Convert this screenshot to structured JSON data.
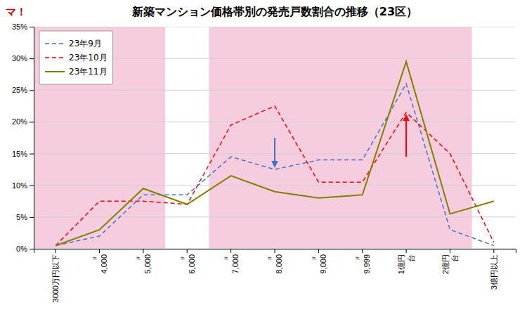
{
  "chart_data": {
    "type": "line",
    "title": "新築マンション価格帯別の発売戸数割合の推移（23区）",
    "categories": [
      "3000万円以下",
      "〃\n4,000",
      "〃\n5,000",
      "〃\n6,000",
      "〃\n7,000",
      "〃\n8,000",
      "〃\n9,000",
      "〃\n9,999",
      "1億円\n台",
      "2億円\n台",
      "3億円以上"
    ],
    "series": [
      {
        "name": "23年9月",
        "color": "#4472C4",
        "line_style": "dashed",
        "values": [
          0.5,
          2.0,
          8.5,
          8.5,
          14.5,
          12.5,
          14.0,
          14.0,
          26.0,
          3.0,
          0.5
        ]
      },
      {
        "name": "23年10月",
        "color": "#FF0000",
        "line_style": "dashed",
        "values": [
          0.5,
          7.5,
          7.5,
          7.0,
          19.5,
          22.5,
          10.5,
          10.5,
          21.5,
          15.0,
          1.0
        ]
      },
      {
        "name": "23年11月",
        "color": "#808000",
        "line_style": "solid",
        "values": [
          0.5,
          3.0,
          9.5,
          7.0,
          11.5,
          9.0,
          8.0,
          8.5,
          29.5,
          5.5,
          7.5
        ]
      }
    ],
    "ylim": [
      0,
      35
    ],
    "yticks": [
      {
        "value": 0,
        "label": "0%"
      },
      {
        "value": 5,
        "label": "5%"
      },
      {
        "value": 10,
        "label": "10%"
      },
      {
        "value": 15,
        "label": "15%"
      },
      {
        "value": 20,
        "label": "20%"
      },
      {
        "value": 25,
        "label": "25%"
      },
      {
        "value": 30,
        "label": "30%"
      },
      {
        "value": 35,
        "label": "35%"
      }
    ],
    "grid": true,
    "legend": "upper left",
    "bands": [
      {
        "from": "3000万円以下",
        "to": "〃\n5,000",
        "color": "#F2B8D0"
      },
      {
        "from": "〃\n7,000",
        "to": "2億円\n台",
        "color": "#F2B8D0"
      }
    ],
    "arrows": [
      {
        "category": "〃\n8,000",
        "from": 17.5,
        "to": 13.0,
        "color": "#4472C4"
      },
      {
        "category": "1億円\n台",
        "from": 14.5,
        "to": 21.0,
        "color": "#FF0000"
      }
    ],
    "annotations": [
      {
        "text": "マ！",
        "color": "#CC0000"
      }
    ]
  }
}
